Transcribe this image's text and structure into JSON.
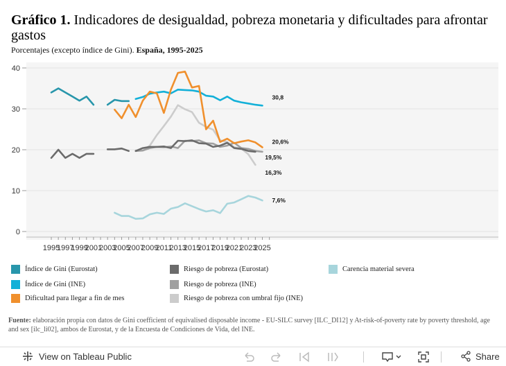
{
  "header": {
    "title_bold": "Gráfico 1.",
    "title_rest": "Indicadores de desigualdad, pobreza monetaria y dificultades para afrontar gastos",
    "subtitle_plain": "Porcentajes (excepto índice de Gini).",
    "subtitle_bold": "España, 1995-2025"
  },
  "chart_data": {
    "type": "line",
    "ylim": [
      0,
      40
    ],
    "xlim": [
      1994,
      2026.5
    ],
    "y_ticks": [
      0,
      10,
      20,
      30,
      40
    ],
    "x_ticks": [
      1995,
      1997,
      1999,
      2001,
      2003,
      2005,
      2007,
      2009,
      2011,
      2013,
      2015,
      2017,
      2019,
      2021,
      2023,
      2025
    ],
    "grid": "horizontal",
    "series": [
      {
        "name": "Carencia material severa",
        "color": "#a7d5dc",
        "points": [
          [
            2004,
            4.6
          ],
          [
            2005,
            3.8
          ],
          [
            2006,
            3.8
          ],
          [
            2007,
            3.1
          ],
          [
            2008,
            3.2
          ],
          [
            2009,
            4.2
          ],
          [
            2010,
            4.6
          ],
          [
            2011,
            4.3
          ],
          [
            2012,
            5.6
          ],
          [
            2013,
            6.0
          ],
          [
            2014,
            6.9
          ],
          [
            2015,
            6.2
          ],
          [
            2016,
            5.5
          ],
          [
            2017,
            4.9
          ],
          [
            2018,
            5.2
          ],
          [
            2019,
            4.5
          ],
          [
            2020,
            6.8
          ],
          [
            2021,
            7.1
          ],
          [
            2022,
            7.9
          ],
          [
            2023,
            8.7
          ],
          [
            2024,
            8.3
          ],
          [
            2025,
            7.6
          ]
        ]
      },
      {
        "name": "Riesgo de pobreza con umbral fijo (INE)",
        "color": "#cccccc",
        "points": [
          [
            2007,
            19.8
          ],
          [
            2008,
            19.8
          ],
          [
            2009,
            21.0
          ],
          [
            2010,
            23.6
          ],
          [
            2011,
            25.8
          ],
          [
            2012,
            28.1
          ],
          [
            2013,
            30.9
          ],
          [
            2014,
            29.9
          ],
          [
            2015,
            29.2
          ],
          [
            2016,
            26.6
          ],
          [
            2017,
            25.6
          ],
          [
            2018,
            24.9
          ],
          [
            2019,
            22.3
          ],
          [
            2020,
            21.9
          ],
          [
            2021,
            20.6
          ],
          [
            2022,
            20.3
          ],
          [
            2023,
            18.9
          ],
          [
            2024,
            16.3
          ]
        ]
      },
      {
        "name": "Riesgo de pobreza (INE)",
        "color": "#a0a0a0",
        "points": [
          [
            2007,
            19.7
          ],
          [
            2008,
            19.8
          ],
          [
            2009,
            20.4
          ],
          [
            2010,
            20.7
          ],
          [
            2011,
            20.6
          ],
          [
            2012,
            20.8
          ],
          [
            2013,
            20.4
          ],
          [
            2014,
            22.2
          ],
          [
            2015,
            22.1
          ],
          [
            2016,
            22.3
          ],
          [
            2017,
            21.6
          ],
          [
            2018,
            21.5
          ],
          [
            2019,
            20.7
          ],
          [
            2020,
            21.0
          ],
          [
            2021,
            21.7
          ],
          [
            2022,
            20.4
          ],
          [
            2023,
            20.2
          ],
          [
            2024,
            19.7
          ],
          [
            2025,
            19.5
          ]
        ]
      },
      {
        "name": "Riesgo de pobreza (Eurostat)",
        "color": "#6b6b6b",
        "segments": [
          [
            [
              1995,
              18.0
            ],
            [
              1996,
              20.0
            ],
            [
              1997,
              18.0
            ],
            [
              1998,
              19.0
            ],
            [
              1999,
              18.0
            ],
            [
              2000,
              19.0
            ],
            [
              2001,
              19.0
            ]
          ],
          [
            [
              2003,
              20.1
            ],
            [
              2004,
              20.1
            ],
            [
              2005,
              20.3
            ],
            [
              2006,
              19.7
            ]
          ],
          [
            [
              2007,
              19.7
            ],
            [
              2008,
              20.4
            ],
            [
              2009,
              20.7
            ],
            [
              2010,
              20.7
            ],
            [
              2011,
              20.8
            ],
            [
              2012,
              20.4
            ],
            [
              2013,
              22.2
            ],
            [
              2014,
              22.1
            ],
            [
              2015,
              22.3
            ],
            [
              2016,
              21.6
            ],
            [
              2017,
              21.5
            ],
            [
              2018,
              20.7
            ],
            [
              2019,
              21.0
            ],
            [
              2020,
              21.7
            ],
            [
              2021,
              20.4
            ],
            [
              2022,
              20.2
            ],
            [
              2023,
              19.7
            ],
            [
              2024,
              19.5
            ]
          ]
        ]
      },
      {
        "name": "Índice de Gini (Eurostat)",
        "color": "#2896ab",
        "segments": [
          [
            [
              1995,
              34.0
            ],
            [
              1996,
              35.0
            ],
            [
              1997,
              34.0
            ],
            [
              1998,
              33.0
            ],
            [
              1999,
              32.0
            ],
            [
              2000,
              33.0
            ],
            [
              2001,
              31.0
            ]
          ],
          [
            [
              2003,
              31.0
            ],
            [
              2004,
              32.2
            ],
            [
              2005,
              31.9
            ],
            [
              2006,
              31.9
            ]
          ]
        ]
      },
      {
        "name": "Índice de Gini (INE)",
        "color": "#13b0d8",
        "points": [
          [
            2007,
            32.4
          ],
          [
            2008,
            32.9
          ],
          [
            2009,
            33.7
          ],
          [
            2010,
            34.0
          ],
          [
            2011,
            34.2
          ],
          [
            2012,
            33.8
          ],
          [
            2013,
            34.7
          ],
          [
            2014,
            34.6
          ],
          [
            2015,
            34.5
          ],
          [
            2016,
            34.2
          ],
          [
            2017,
            33.2
          ],
          [
            2018,
            33.0
          ],
          [
            2019,
            32.1
          ],
          [
            2020,
            33.0
          ],
          [
            2021,
            32.0
          ],
          [
            2022,
            31.6
          ],
          [
            2023,
            31.3
          ],
          [
            2024,
            31.0
          ],
          [
            2025,
            30.8
          ]
        ]
      },
      {
        "name": "Dificultad para llegar a fin de mes",
        "color": "#f0902d",
        "points": [
          [
            2004,
            29.8
          ],
          [
            2005,
            27.7
          ],
          [
            2006,
            31.0
          ],
          [
            2007,
            28.0
          ],
          [
            2008,
            32.0
          ],
          [
            2009,
            34.2
          ],
          [
            2010,
            33.8
          ],
          [
            2011,
            29.0
          ],
          [
            2012,
            34.7
          ],
          [
            2013,
            38.8
          ],
          [
            2014,
            39.1
          ],
          [
            2015,
            35.2
          ],
          [
            2016,
            35.6
          ],
          [
            2017,
            25.0
          ],
          [
            2018,
            27.1
          ],
          [
            2019,
            21.9
          ],
          [
            2020,
            22.7
          ],
          [
            2021,
            21.6
          ],
          [
            2022,
            22.0
          ],
          [
            2023,
            22.3
          ],
          [
            2024,
            21.8
          ],
          [
            2025,
            20.6
          ]
        ]
      }
    ],
    "end_labels": [
      {
        "text": "30,8",
        "x": 2025,
        "y": 30.8
      },
      {
        "text": "20,6%",
        "x": 2025,
        "y": 20.6
      },
      {
        "text": "19,5%",
        "x": 2024,
        "y": 19.5
      },
      {
        "text": "16,3%",
        "x": 2024,
        "y": 16.3
      },
      {
        "text": "7,6%",
        "x": 2025,
        "y": 7.6
      }
    ]
  },
  "legend": {
    "items": [
      {
        "label": "Índice de Gini (Eurostat)",
        "color": "#2896ab"
      },
      {
        "label": "Índice de Gini (INE)",
        "color": "#13b0d8"
      },
      {
        "label": "Dificultad para llegar a fin de mes",
        "color": "#f0902d"
      },
      {
        "label": "Riesgo de pobreza (Eurostat)",
        "color": "#6b6b6b"
      },
      {
        "label": "Riesgo de pobreza (INE)",
        "color": "#a0a0a0"
      },
      {
        "label": "Riesgo de pobreza con umbral fijo (INE)",
        "color": "#cccccc"
      },
      {
        "label": "Carencia material severa",
        "color": "#a7d5dc"
      }
    ]
  },
  "footnote": {
    "label": "Fuente:",
    "text": "elaboración propia con datos de Gini coefficient of equivalised disposable income - EU-SILC survey [ILC_DI12] y At-risk-of-poverty rate by poverty threshold, age and sex [ilc_li02],  ambos de Eurostat, y de la Encuesta de Condiciones de Vida, del INE."
  },
  "toolbar": {
    "view_label": "View on Tableau Public",
    "share_label": "Share"
  }
}
